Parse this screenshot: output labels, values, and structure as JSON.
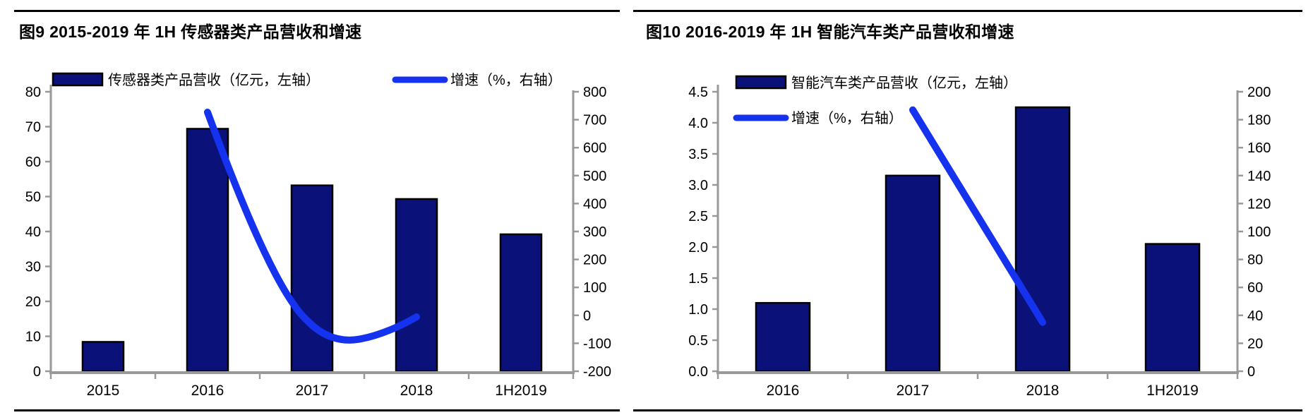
{
  "colors": {
    "bar_fill": "#0A127A",
    "bar_stroke": "#000000",
    "line": "#1533EE",
    "axis": "#999999",
    "text": "#000000",
    "rule": "#000000",
    "background": "#FFFFFF"
  },
  "chart_data": [
    {
      "type": "bar+line",
      "title": "图9  2015-2019 年 1H 传感器类产品营收和增速",
      "categories": [
        "2015",
        "2016",
        "2017",
        "2018",
        "1H2019"
      ],
      "series": [
        {
          "name": "传感器类产品营收（亿元，左轴）",
          "type": "bar",
          "axis": "left",
          "values": [
            8.4,
            69.4,
            53.2,
            49.3,
            39.2
          ]
        },
        {
          "name": "增速（%，右轴）",
          "type": "line",
          "axis": "right",
          "smooth": true,
          "points": [
            {
              "x": "2016",
              "y": 726
            },
            {
              "x": "2017",
              "y": -24
            },
            {
              "x": "2018",
              "y": -7
            }
          ]
        }
      ],
      "left_axis": {
        "min": 0,
        "max": 80,
        "step": 10,
        "tick_labels": [
          "80",
          "70",
          "60",
          "50",
          "40",
          "30",
          "20",
          "10",
          "0"
        ]
      },
      "right_axis": {
        "min": -200,
        "max": 800,
        "step": 100,
        "tick_labels": [
          "800",
          "700",
          "600",
          "500",
          "400",
          "300",
          "200",
          "100",
          "0",
          "-100",
          "-200"
        ]
      },
      "legend_position": "top-inside-row",
      "grid": false
    },
    {
      "type": "bar+line",
      "title": "图10  2016-2019 年 1H 智能汽车类产品营收和增速",
      "categories": [
        "2016",
        "2017",
        "2018",
        "1H2019"
      ],
      "series": [
        {
          "name": "智能汽车类产品营收（亿元，左轴）",
          "type": "bar",
          "axis": "left",
          "values": [
            1.1,
            3.15,
            4.25,
            2.05
          ]
        },
        {
          "name": "增速（%，右轴）",
          "type": "line",
          "axis": "right",
          "smooth": false,
          "points": [
            {
              "x": "2017",
              "y": 187
            },
            {
              "x": "2018",
              "y": 35
            }
          ]
        }
      ],
      "left_axis": {
        "min": 0,
        "max": 4.5,
        "step": 0.5,
        "tick_labels": [
          "4.5",
          "4.0",
          "3.5",
          "3.0",
          "2.5",
          "2.0",
          "1.5",
          "1.0",
          "0.5",
          "0.0"
        ]
      },
      "right_axis": {
        "min": 0,
        "max": 200,
        "step": 20,
        "tick_labels": [
          "200",
          "180",
          "160",
          "140",
          "120",
          "100",
          "80",
          "60",
          "40",
          "20",
          "0"
        ]
      },
      "legend_position": "top-inside-column",
      "grid": false
    }
  ]
}
